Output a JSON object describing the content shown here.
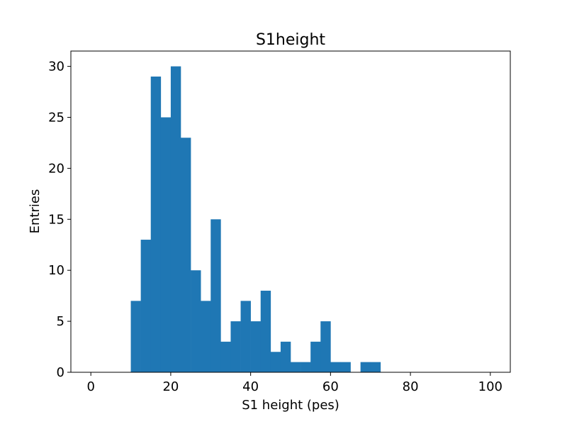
{
  "chart_data": {
    "type": "bar",
    "title": "S1height",
    "xlabel": "S1 height (pes)",
    "ylabel": "Entries",
    "xlim": [
      -5,
      105
    ],
    "ylim": [
      0,
      31.5
    ],
    "bin_width": 2.5,
    "bin_starts": [
      10,
      12.5,
      15,
      17.5,
      20,
      22.5,
      25,
      27.5,
      30,
      32.5,
      35,
      37.5,
      40,
      42.5,
      45,
      47.5,
      50,
      52.5,
      55,
      57.5,
      60,
      62.5,
      65,
      67.5,
      70,
      72.5
    ],
    "values": [
      7,
      13,
      29,
      25,
      30,
      23,
      10,
      7,
      15,
      3,
      5,
      7,
      5,
      8,
      2,
      3,
      1,
      1,
      3,
      5,
      1,
      1,
      0,
      1,
      1,
      0
    ],
    "xticks": [
      0,
      20,
      40,
      60,
      80,
      100
    ],
    "yticks": [
      0,
      5,
      10,
      15,
      20,
      25,
      30
    ],
    "bar_color": "#1f77b4",
    "grid": false
  }
}
